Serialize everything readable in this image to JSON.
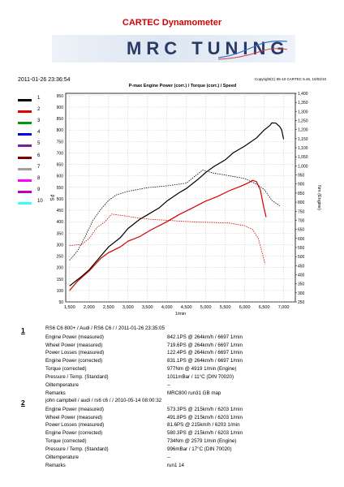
{
  "page": {
    "title": "CARTEC Dynamometer",
    "timestamp": "2011-01-26 23:36:54",
    "copyright": "Copyright(C) 95-10 CARTEC 5.46, 10/02/10",
    "chart_title": "P-max Engine Power (corr.) / Torque (corr.) / Speed",
    "logo_text": "MRC TUNING"
  },
  "legend": [
    {
      "num": "1",
      "color": "#000000"
    },
    {
      "num": "2",
      "color": "#e00000"
    },
    {
      "num": "3",
      "color": "#009900"
    },
    {
      "num": "4",
      "color": "#0000e0"
    },
    {
      "num": "5",
      "color": "#7a1fa2"
    },
    {
      "num": "6",
      "color": "#800000"
    },
    {
      "num": "7",
      "color": "#a0a0a0"
    },
    {
      "num": "8",
      "color": "#ff00ff"
    },
    {
      "num": "9",
      "color": "#bb00bb"
    },
    {
      "num": "10",
      "color": "#33ffff"
    }
  ],
  "chart_data": {
    "type": "line",
    "title": "P-max Engine Power (corr.) / Torque (corr.) / Speed",
    "xlabel": "1/min",
    "ylabel_left": "PS",
    "ylabel_right": "Nm (Engine)",
    "xlim": [
      1400,
      7300
    ],
    "ylim_left": [
      50,
      960
    ],
    "ylim_right": [
      250,
      1400
    ],
    "x_ticks": [
      1500,
      2000,
      2500,
      3000,
      3500,
      4000,
      4500,
      5000,
      5500,
      6000,
      6500,
      7000
    ],
    "x_tick_labels": [
      "1,500",
      "2,000",
      "2,500",
      "3,000",
      "3,500",
      "4,000",
      "4,500",
      "5,000",
      "5,500",
      "6,000",
      "6,500",
      "7,000"
    ],
    "y_left_ticks": [
      50,
      100,
      150,
      200,
      250,
      300,
      350,
      400,
      450,
      500,
      550,
      600,
      650,
      700,
      750,
      800,
      850,
      900,
      950
    ],
    "y_right_ticks": [
      250,
      300,
      350,
      400,
      450,
      500,
      550,
      600,
      650,
      700,
      750,
      800,
      850,
      900,
      950,
      1000,
      1050,
      1100,
      1150,
      1200,
      1250,
      1300,
      1350,
      1400
    ],
    "y_right_tick_labels": [
      "250",
      "300",
      "350",
      "400",
      "450",
      "500",
      "550",
      "600",
      "650",
      "700",
      "750",
      "800",
      "850",
      "900",
      "950",
      "1,000",
      "1,050",
      "1,100",
      "1,150",
      "1,200",
      "1,250",
      "1,300",
      "1,350",
      "1,400"
    ],
    "grid": true,
    "series": [
      {
        "name": "1",
        "quantity": "Engine Power (corr.)",
        "axis": "left",
        "color": "#000000",
        "dash": false,
        "points": [
          [
            1500,
            120
          ],
          [
            1800,
            160
          ],
          [
            2000,
            190
          ],
          [
            2300,
            250
          ],
          [
            2500,
            290
          ],
          [
            2800,
            330
          ],
          [
            3000,
            370
          ],
          [
            3300,
            410
          ],
          [
            3500,
            430
          ],
          [
            3800,
            460
          ],
          [
            4000,
            490
          ],
          [
            4300,
            525
          ],
          [
            4500,
            545
          ],
          [
            4800,
            585
          ],
          [
            5000,
            615
          ],
          [
            5200,
            640
          ],
          [
            5500,
            670
          ],
          [
            5700,
            700
          ],
          [
            6000,
            730
          ],
          [
            6300,
            765
          ],
          [
            6500,
            800
          ],
          [
            6650,
            820
          ],
          [
            6697,
            831
          ],
          [
            6800,
            830
          ],
          [
            6900,
            815
          ],
          [
            6950,
            800
          ],
          [
            7000,
            760
          ]
        ]
      },
      {
        "name": "1",
        "quantity": "Torque (corr.)",
        "axis": "right",
        "color": "#000000",
        "dash": true,
        "points": [
          [
            1500,
            480
          ],
          [
            1700,
            530
          ],
          [
            1900,
            610
          ],
          [
            2100,
            700
          ],
          [
            2300,
            760
          ],
          [
            2500,
            810
          ],
          [
            2700,
            840
          ],
          [
            3000,
            860
          ],
          [
            3500,
            880
          ],
          [
            4000,
            890
          ],
          [
            4500,
            905
          ],
          [
            4919,
            977
          ],
          [
            5200,
            960
          ],
          [
            5500,
            950
          ],
          [
            6000,
            930
          ],
          [
            6300,
            900
          ],
          [
            6500,
            870
          ],
          [
            6700,
            810
          ],
          [
            6900,
            780
          ]
        ]
      },
      {
        "name": "2",
        "quantity": "Engine Power (corr.)",
        "axis": "left",
        "color": "#d00000",
        "dash": false,
        "points": [
          [
            1500,
            100
          ],
          [
            1700,
            140
          ],
          [
            2000,
            185
          ],
          [
            2300,
            240
          ],
          [
            2500,
            265
          ],
          [
            2800,
            290
          ],
          [
            3000,
            315
          ],
          [
            3300,
            335
          ],
          [
            3600,
            365
          ],
          [
            4000,
            400
          ],
          [
            4300,
            430
          ],
          [
            4600,
            455
          ],
          [
            5000,
            490
          ],
          [
            5300,
            510
          ],
          [
            5600,
            535
          ],
          [
            5900,
            555
          ],
          [
            6100,
            570
          ],
          [
            6203,
            580
          ],
          [
            6300,
            575
          ],
          [
            6400,
            540
          ],
          [
            6480,
            470
          ],
          [
            6550,
            420
          ]
        ]
      },
      {
        "name": "2",
        "quantity": "Torque (corr.)",
        "axis": "right",
        "color": "#d00000",
        "dash": true,
        "points": [
          [
            1500,
            560
          ],
          [
            1700,
            565
          ],
          [
            1800,
            565
          ],
          [
            2000,
            600
          ],
          [
            2200,
            660
          ],
          [
            2400,
            690
          ],
          [
            2579,
            734
          ],
          [
            2900,
            725
          ],
          [
            3200,
            715
          ],
          [
            3600,
            705
          ],
          [
            4000,
            700
          ],
          [
            4400,
            695
          ],
          [
            4800,
            690
          ],
          [
            5200,
            688
          ],
          [
            5600,
            685
          ],
          [
            6000,
            670
          ],
          [
            6200,
            650
          ],
          [
            6350,
            600
          ],
          [
            6450,
            520
          ],
          [
            6520,
            460
          ]
        ]
      }
    ]
  },
  "results": [
    {
      "num": "1",
      "header": "RS6 C6 800+ / Audi  / RS6 C6 /  / 2011-01-26 23:35:05",
      "rows": [
        {
          "label": "Engine Power (measured)",
          "value": "842.1PS @ 264km/h / 6697 1/min"
        },
        {
          "label": "Wheel Power (measured)",
          "value": "719.6PS @ 264km/h / 6697 1/min"
        },
        {
          "label": "Power Losses (measured)",
          "value": "122.4PS @ 264km/h / 6697 1/min"
        },
        {
          "label": "Engine Power (corrected)",
          "value": "831.1PS @ 264km/h / 6697 1/min"
        },
        {
          "label": "Torque (corrected)",
          "value": "977Nm @ 4919 1/min (Engine)"
        },
        {
          "label": "Pressure / Temp. (Standard)",
          "value": "1011mBar / 11°C    (DIN 70020)"
        },
        {
          "label": "Oiltemperature",
          "value": "--"
        },
        {
          "label": "Remarks",
          "value": "MRC800 run31 GB map"
        }
      ]
    },
    {
      "num": "2",
      "header": "john campbell / audi  / rs6  c6  /  / 2010-05-14 08:00:32",
      "rows": [
        {
          "label": "Engine Power (measured)",
          "value": "573.3PS @ 215km/h / 6203 1/min"
        },
        {
          "label": "Wheel Power (measured)",
          "value": "491.8PS @ 215km/h / 6203 1/min"
        },
        {
          "label": "Power Losses (measured)",
          "value": "81.6PS @ 215km/h / 6203 1/min"
        },
        {
          "label": "Engine Power (corrected)",
          "value": "580.3PS @ 215km/h / 6203 1/min"
        },
        {
          "label": "Torque (corrected)",
          "value": "734Nm @ 2579 1/min (Engine)"
        },
        {
          "label": "Pressure / Temp. (Standard)",
          "value": "996mBar / 17°C    (DIN 70020)"
        },
        {
          "label": "Oiltemperature",
          "value": "--"
        },
        {
          "label": "Remarks",
          "value": "run1 14"
        }
      ]
    }
  ]
}
